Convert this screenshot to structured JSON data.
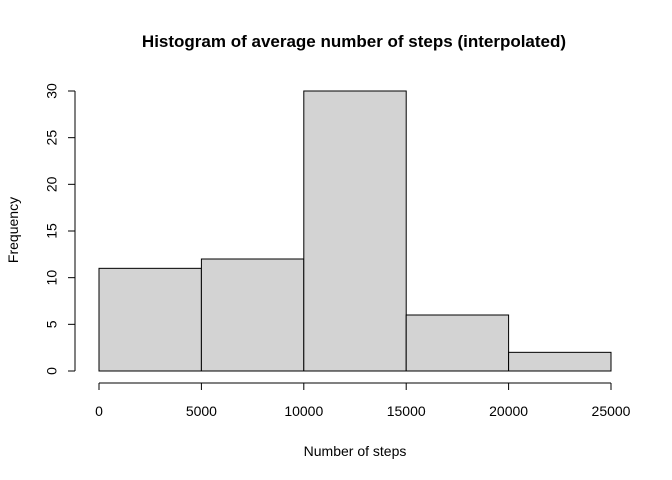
{
  "chart_data": {
    "type": "bar",
    "title": "Histogram of average number of steps (interpolated)",
    "xlabel": "Number of steps",
    "ylabel": "Frequency",
    "bins": [
      {
        "start": 0,
        "end": 5000,
        "count": 11
      },
      {
        "start": 5000,
        "end": 10000,
        "count": 12
      },
      {
        "start": 10000,
        "end": 15000,
        "count": 30
      },
      {
        "start": 15000,
        "end": 20000,
        "count": 6
      },
      {
        "start": 20000,
        "end": 25000,
        "count": 2
      }
    ],
    "xlim": [
      0,
      25000
    ],
    "ylim": [
      0,
      30
    ],
    "x_ticks": [
      0,
      5000,
      10000,
      15000,
      20000,
      25000
    ],
    "y_ticks": [
      0,
      5,
      10,
      15,
      20,
      25,
      30
    ],
    "bar_fill": "#d3d3d3",
    "bar_stroke": "#000000",
    "grid": false,
    "legend": "none"
  }
}
